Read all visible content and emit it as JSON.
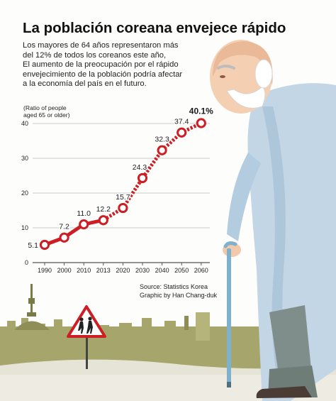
{
  "title": "La población coreana envejece rápido",
  "subtitle_lines": [
    "Los mayores de 64 años representaron más",
    "del 12% de todos los coreanos este año,",
    "El aumento de la preocupación por el rápido",
    "envejecimiento de la población podría afectar",
    "a la economía del país en el futuro."
  ],
  "ylabel_lines": [
    "(Ratio of people",
    "aged 65 or older)"
  ],
  "source_lines": [
    "Source: Statistics Korea",
    "Graphic by Han Chang-duk"
  ],
  "chart_data": {
    "type": "line",
    "categories": [
      "1990",
      "2000",
      "2010",
      "2013",
      "2020",
      "2030",
      "2040",
      "2050",
      "2060"
    ],
    "values": [
      5.1,
      7.2,
      11.0,
      12.2,
      15.7,
      24.3,
      32.3,
      37.4,
      40.1
    ],
    "data_labels": [
      "5.1",
      "7.2",
      "11.0",
      "12.2",
      "15.7",
      "24.3",
      "32.3",
      "37.4",
      "40.1%"
    ],
    "projected_from_index": 3,
    "ylim": [
      0,
      40
    ],
    "yticks": [
      "0",
      "10",
      "20",
      "30",
      "40"
    ],
    "grid": true,
    "colors": {
      "line": "#cc1e24",
      "marker_fill": "#ffffff",
      "grid": "#b9b9b9"
    }
  }
}
